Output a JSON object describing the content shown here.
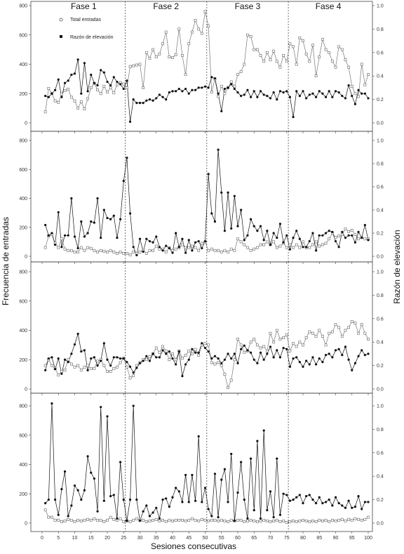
{
  "chart_data": {
    "type": "line",
    "xlabel": "Sesiones consecutivas",
    "ylabel_left": "Frecuencia de entradas",
    "ylabel_right": "Razón de elevación",
    "xlim": [
      0,
      100
    ],
    "x_ticks": [
      0,
      5,
      10,
      15,
      20,
      25,
      30,
      35,
      40,
      45,
      50,
      55,
      60,
      65,
      70,
      75,
      80,
      85,
      90,
      95,
      100
    ],
    "ylim_left": [
      0,
      800
    ],
    "y_ticks_left": [
      0,
      200,
      400,
      600,
      800
    ],
    "ylim_right": [
      0,
      1.0
    ],
    "y_ticks_right": [
      0,
      0.2,
      0.4,
      0.6,
      0.8,
      1.0
    ],
    "phases": [
      "Fase 1",
      "Fase 2",
      "Fase 3",
      "Fase 4"
    ],
    "phase_boundaries": [
      25.5,
      50.5,
      75.5
    ],
    "legend": [
      {
        "name": "Total entradas",
        "marker": "open-square"
      },
      {
        "name": "Razón de elevación",
        "marker": "filled-square"
      }
    ],
    "panels": [
      {
        "total_entradas": [
          75,
          235,
          200,
          150,
          140,
          195,
          220,
          230,
          175,
          150,
          100,
          145,
          95,
          165,
          240,
          270,
          225,
          200,
          250,
          210,
          240,
          205,
          260,
          275,
          265,
          240,
          385,
          390,
          395,
          400,
          240,
          480,
          440,
          500,
          450,
          470,
          540,
          620,
          450,
          445,
          465,
          640,
          460,
          330,
          540,
          620,
          700,
          640,
          610,
          760,
          660,
          210,
          300,
          180,
          250,
          200,
          240,
          280,
          250,
          330,
          350,
          400,
          600,
          590,
          500,
          500,
          460,
          420,
          480,
          430,
          490,
          420,
          380,
          460,
          420,
          540,
          520,
          400,
          580,
          560,
          470,
          420,
          530,
          320,
          450,
          570,
          500,
          480,
          420,
          380,
          520,
          500,
          430,
          380,
          250,
          200,
          180,
          400,
          260,
          330
        ],
        "razon_elevacion": [
          0.23,
          0.22,
          0.25,
          0.28,
          0.37,
          0.22,
          0.34,
          0.36,
          0.41,
          0.42,
          0.54,
          0.25,
          0.51,
          0.27,
          0.41,
          0.34,
          0.32,
          0.45,
          0.43,
          0.35,
          0.32,
          0.39,
          0.35,
          0.33,
          0.29,
          0.36,
          0.01,
          0.2,
          0.17,
          0.17,
          0.17,
          0.19,
          0.2,
          0.19,
          0.21,
          0.24,
          0.22,
          0.2,
          0.26,
          0.27,
          0.27,
          0.29,
          0.27,
          0.29,
          0.25,
          0.28,
          0.28,
          0.3,
          0.3,
          0.31,
          0.3,
          0.39,
          0.38,
          0.25,
          0.1,
          0.29,
          0.3,
          0.33,
          0.29,
          0.26,
          0.23,
          0.24,
          0.28,
          0.22,
          0.27,
          0.22,
          0.27,
          0.24,
          0.23,
          0.21,
          0.26,
          0.2,
          0.27,
          0.26,
          0.27,
          0.22,
          0.05,
          0.27,
          0.23,
          0.27,
          0.21,
          0.24,
          0.25,
          0.22,
          0.27,
          0.25,
          0.22,
          0.27,
          0.22,
          0.27,
          0.26,
          0.23,
          0.21,
          0.32,
          0.23,
          0.16,
          0.28,
          0.25,
          0.25,
          0.21
        ]
      },
      {
        "total_entradas": [
          60,
          140,
          150,
          90,
          60,
          120,
          50,
          40,
          40,
          30,
          30,
          60,
          40,
          60,
          55,
          40,
          30,
          40,
          35,
          30,
          40,
          30,
          20,
          30,
          20,
          20,
          10,
          30,
          20,
          30,
          40,
          20,
          40,
          40,
          70,
          50,
          50,
          30,
          60,
          40,
          50,
          60,
          80,
          60,
          60,
          70,
          60,
          40,
          90,
          100,
          40,
          50,
          40,
          40,
          30,
          40,
          30,
          50,
          40,
          120,
          100,
          80,
          60,
          40,
          50,
          60,
          80,
          80,
          100,
          80,
          100,
          60,
          70,
          90,
          60,
          80,
          60,
          80,
          60,
          100,
          60,
          60,
          80,
          100,
          70,
          80,
          90,
          120,
          160,
          130,
          140,
          150,
          190,
          170,
          180,
          150,
          120,
          130,
          120,
          120
        ],
        "razon_elevacion": [
          0.27,
          0.18,
          0.2,
          0.1,
          0.38,
          0.08,
          0.18,
          0.18,
          0.5,
          0.17,
          0.07,
          0.3,
          0.17,
          0.2,
          0.3,
          0.29,
          0.5,
          0.16,
          0.4,
          0.33,
          0.32,
          0.35,
          0.16,
          0.32,
          0.65,
          0.85,
          0.37,
          0.08,
          0.01,
          0.15,
          0.04,
          0.15,
          0.13,
          0.12,
          0.17,
          0.08,
          0.05,
          0.09,
          0.07,
          0.03,
          0.2,
          0.08,
          0.15,
          0.03,
          0.14,
          0.05,
          0.12,
          0.13,
          0.07,
          0.13,
          0.71,
          0.37,
          0.3,
          0.92,
          0.55,
          0.22,
          0.55,
          0.24,
          0.52,
          0.26,
          0.4,
          0.14,
          0.18,
          0.32,
          0.26,
          0.22,
          0.26,
          0.14,
          0.22,
          0.1,
          0.2,
          0.16,
          0.28,
          0.12,
          0.18,
          0.06,
          0.16,
          0.22,
          0.15,
          0.08,
          0.08,
          0.13,
          0.2,
          0.05,
          0.18,
          0.18,
          0.2,
          0.22,
          0.21,
          0.13,
          0.08,
          0.21,
          0.16,
          0.18,
          0.18,
          0.12,
          0.21,
          0.16,
          0.27,
          0.14
        ]
      },
      {
        "total_entradas": [
          160,
          200,
          160,
          140,
          95,
          120,
          130,
          200,
          170,
          150,
          160,
          130,
          150,
          160,
          140,
          140,
          190,
          200,
          160,
          120,
          120,
          140,
          150,
          180,
          210,
          150,
          75,
          90,
          160,
          180,
          200,
          200,
          220,
          240,
          280,
          250,
          290,
          260,
          200,
          240,
          200,
          260,
          210,
          230,
          260,
          240,
          270,
          230,
          300,
          310,
          300,
          180,
          170,
          180,
          160,
          100,
          10,
          60,
          200,
          340,
          300,
          250,
          260,
          320,
          340,
          300,
          280,
          290,
          260,
          380,
          320,
          400,
          340,
          350,
          370,
          260,
          310,
          290,
          320,
          300,
          350,
          390,
          380,
          360,
          400,
          360,
          300,
          380,
          390,
          440,
          420,
          360,
          400,
          420,
          460,
          450,
          380,
          440,
          380,
          340
        ],
        "razon_elevacion": [
          0.16,
          0.26,
          0.27,
          0.17,
          0.26,
          0.13,
          0.25,
          0.23,
          0.3,
          0.38,
          0.47,
          0.32,
          0.33,
          0.16,
          0.26,
          0.27,
          0.2,
          0.24,
          0.39,
          0.25,
          0.2,
          0.27,
          0.27,
          0.26,
          0.26,
          0.23,
          0.19,
          0.14,
          0.18,
          0.22,
          0.24,
          0.28,
          0.24,
          0.3,
          0.27,
          0.27,
          0.33,
          0.3,
          0.32,
          0.26,
          0.21,
          0.32,
          0.11,
          0.21,
          0.25,
          0.34,
          0.31,
          0.31,
          0.39,
          0.35,
          0.32,
          0.26,
          0.28,
          0.26,
          0.22,
          0.25,
          0.3,
          0.26,
          0.3,
          0.22,
          0.34,
          0.37,
          0.33,
          0.31,
          0.25,
          0.22,
          0.31,
          0.25,
          0.3,
          0.36,
          0.27,
          0.33,
          0.27,
          0.35,
          0.34,
          0.19,
          0.26,
          0.27,
          0.23,
          0.19,
          0.24,
          0.21,
          0.27,
          0.21,
          0.26,
          0.23,
          0.29,
          0.3,
          0.27,
          0.33,
          0.34,
          0.29,
          0.36,
          0.25,
          0.16,
          0.22,
          0.28,
          0.33,
          0.29,
          0.3
        ]
      },
      {
        "total_entradas": [
          90,
          40,
          40,
          20,
          20,
          10,
          15,
          25,
          20,
          10,
          20,
          15,
          20,
          25,
          20,
          30,
          20,
          20,
          10,
          20,
          40,
          25,
          20,
          30,
          10,
          15,
          10,
          20,
          30,
          20,
          20,
          10,
          15,
          20,
          25,
          15,
          20,
          10,
          20,
          15,
          20,
          20,
          20,
          15,
          20,
          30,
          20,
          15,
          25,
          20,
          15,
          20,
          20,
          15,
          20,
          15,
          10,
          20,
          15,
          20,
          20,
          10,
          15,
          20,
          15,
          10,
          15,
          20,
          15,
          10,
          15,
          20,
          10,
          15,
          5,
          10,
          15,
          10,
          15,
          20,
          15,
          10,
          15,
          10,
          20,
          15,
          20,
          10,
          20,
          15,
          20,
          25,
          15,
          25,
          20,
          30,
          25,
          20,
          25,
          40
        ],
        "razon_elevacion": [
          0.17,
          0.2,
          1.02,
          0.2,
          0.07,
          0.29,
          0.44,
          0.06,
          0.15,
          0.32,
          0.28,
          0.2,
          0.28,
          0.57,
          0.43,
          0.38,
          0.1,
          0.99,
          0.19,
          0.91,
          0.23,
          0.24,
          0.04,
          0.52,
          0.2,
          0.02,
          0.2,
          1.0,
          0.2,
          0.02,
          0.1,
          0.15,
          0.06,
          0.09,
          0.13,
          0.04,
          0.2,
          0.21,
          0.14,
          0.22,
          0.3,
          0.27,
          0.18,
          0.41,
          0.18,
          0.41,
          0.19,
          0.74,
          0.18,
          0.3,
          0.12,
          0.06,
          0.42,
          0.05,
          0.37,
          0.46,
          0.18,
          0.59,
          0.02,
          0.26,
          0.52,
          0.2,
          0.04,
          0.55,
          0.11,
          0.7,
          0.04,
          0.79,
          0.11,
          0.27,
          0.05,
          0.55,
          0.07,
          0.25,
          0.24,
          0.19,
          0.2,
          0.22,
          0.24,
          0.17,
          0.23,
          0.24,
          0.2,
          0.17,
          0.22,
          0.17,
          0.18,
          0.2,
          0.15,
          0.22,
          0.17,
          0.15,
          0.13,
          0.19,
          0.13,
          0.14,
          0.23,
          0.12,
          0.18,
          0.18
        ]
      }
    ]
  }
}
